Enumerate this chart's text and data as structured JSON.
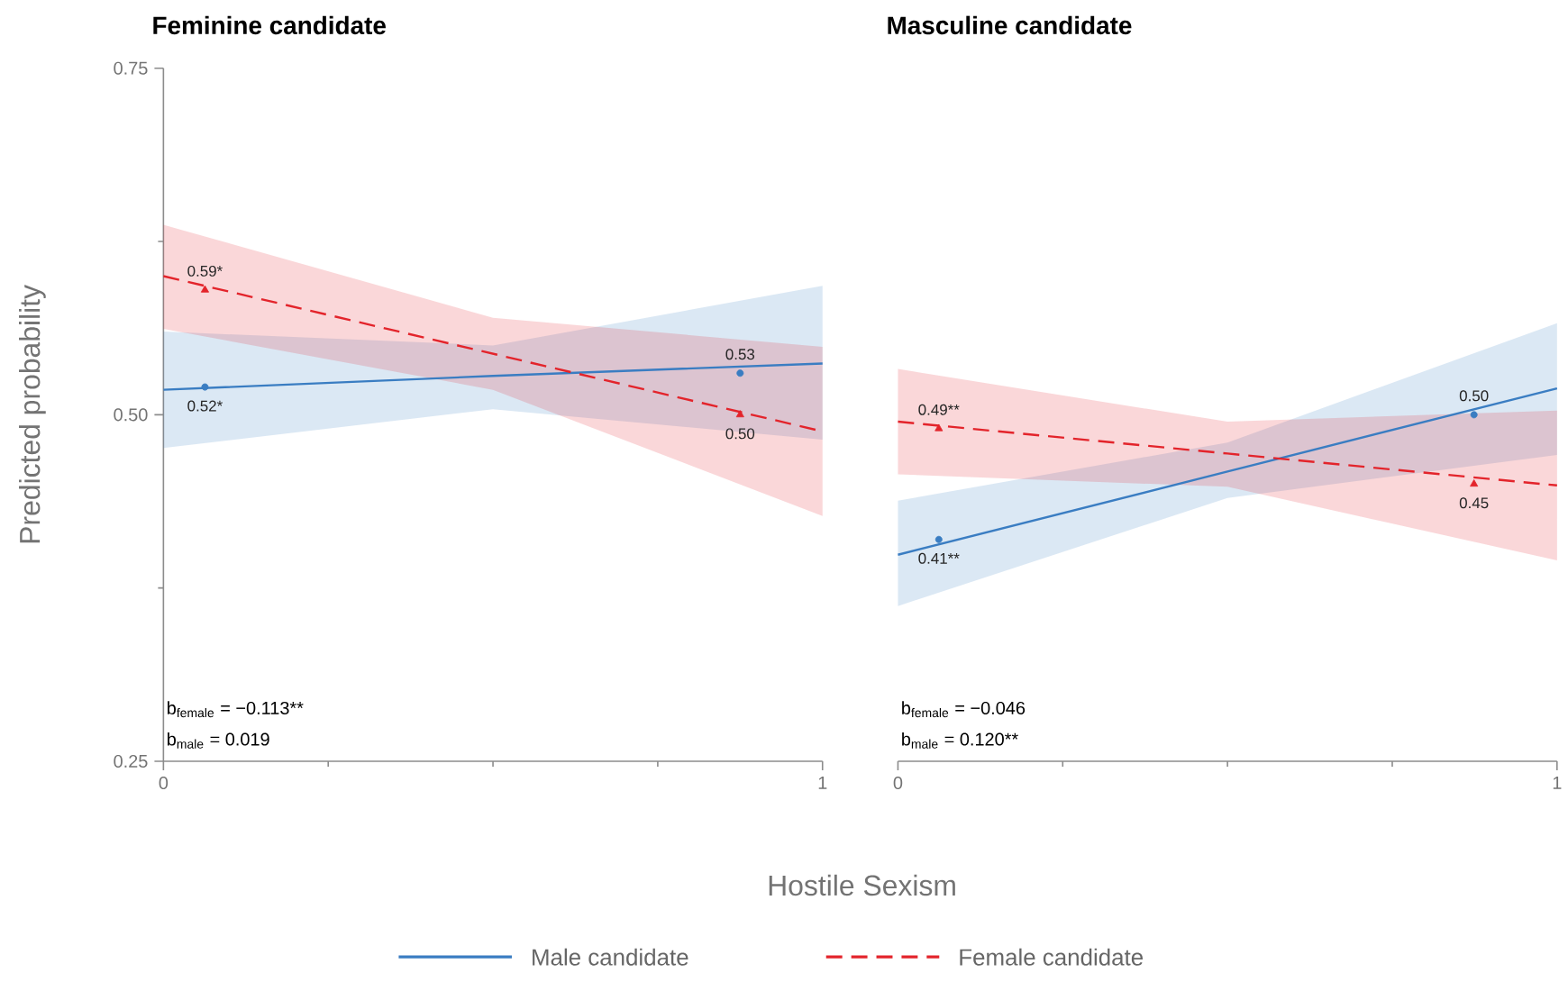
{
  "chart_data": [
    {
      "type": "line",
      "title": "Feminine candidate",
      "xlabel": "Hostile Sexism",
      "ylabel": "Predicted probability",
      "legend": "bottom",
      "xlim": [
        0,
        1
      ],
      "xticks": [
        0,
        {
          "value": 0.25,
          "label": null
        },
        {
          "value": 0.5,
          "label": null
        },
        {
          "value": 0.75,
          "label": null
        },
        1
      ],
      "ylim": [
        0.25,
        0.75
      ],
      "yticks": [
        {
          "value": 0.25,
          "label": "0.25"
        },
        {
          "value": 0.375,
          "label": null
        },
        {
          "value": 0.5,
          "label": "0.50"
        },
        {
          "value": 0.625,
          "label": null
        },
        {
          "value": 0.75,
          "label": "0.75"
        }
      ],
      "annotations": [
        "b$_{female}$  =  −0.113**",
        "b$_{male}$  =  0.019"
      ],
      "series": [
        {
          "name": "Male candidate",
          "color": "#3a7dc2",
          "line_style": "solid",
          "marker": "none",
          "x": [
            0,
            0.5,
            1
          ],
          "values": [
            0.518,
            0.528,
            0.537
          ],
          "lower": [
            0.476,
            0.504,
            0.482
          ],
          "upper": [
            0.56,
            0.55,
            0.593
          ]
        },
        {
          "name": "Female candidate",
          "color": "#e3242b",
          "line_style": "dashed",
          "marker": "none",
          "x": [
            0,
            0.5,
            1
          ],
          "values": [
            0.6,
            0.544,
            0.488
          ],
          "lower": [
            0.562,
            0.518,
            0.427
          ],
          "upper": [
            0.637,
            0.57,
            0.549
          ]
        },
        {
          "type": "scatter",
          "color": "#3a7dc2",
          "marker": "circle",
          "x": [
            0.063,
            0.875
          ],
          "values": [
            0.52,
            0.53
          ],
          "value_labels": [
            "0.52*",
            "0.53"
          ]
        },
        {
          "type": "scatter",
          "color": "#e3242b",
          "marker": "triangle",
          "x": [
            0.063,
            0.875
          ],
          "values": [
            0.59,
            0.5
          ],
          "value_labels": [
            "0.59*",
            "0.50"
          ]
        }
      ]
    },
    {
      "type": "line",
      "title": "Masculine candidate",
      "tick_labels": "x",
      "xlim": [
        0,
        1
      ],
      "xticks": [
        0,
        {
          "value": 0.25,
          "label": null
        },
        {
          "value": 0.5,
          "label": null
        },
        {
          "value": 0.75,
          "label": null
        },
        1
      ],
      "ylim": [
        0.25,
        0.75
      ],
      "annotations": [
        "b$_{female}$  =  −0.046",
        "b$_{male}$  =  0.120**"
      ],
      "series": [
        {
          "color": "#3a7dc2",
          "line_style": "solid",
          "marker": "none",
          "x": [
            0,
            0.5,
            1
          ],
          "values": [
            0.399,
            0.459,
            0.519
          ],
          "lower": [
            0.362,
            0.44,
            0.471
          ],
          "upper": [
            0.438,
            0.48,
            0.566
          ]
        },
        {
          "color": "#e3242b",
          "line_style": "dashed",
          "marker": "none",
          "x": [
            0,
            0.5,
            1
          ],
          "values": [
            0.495,
            0.472,
            0.449
          ],
          "lower": [
            0.457,
            0.448,
            0.395
          ],
          "upper": [
            0.533,
            0.495,
            0.503
          ]
        },
        {
          "type": "scatter",
          "color": "#3a7dc2",
          "marker": "circle",
          "x": [
            0.062,
            0.874
          ],
          "values": [
            0.41,
            0.5
          ],
          "value_labels": [
            "0.41**",
            "0.50"
          ]
        },
        {
          "type": "scatter",
          "color": "#e3242b",
          "marker": "triangle",
          "x": [
            0.062,
            0.874
          ],
          "values": [
            0.49,
            0.45
          ],
          "value_labels": [
            "0.49**",
            "0.45"
          ]
        }
      ]
    }
  ]
}
